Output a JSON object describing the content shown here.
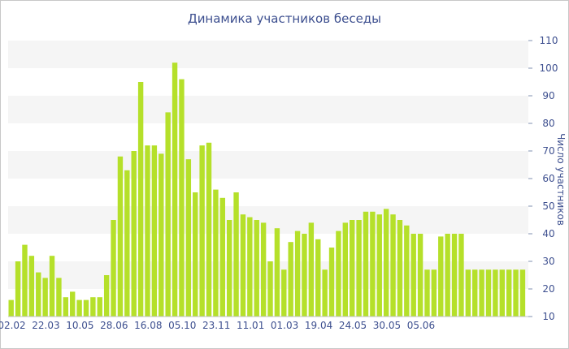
{
  "chart_data": {
    "type": "bar",
    "title": "Динамика участников беседы",
    "xlabel": "",
    "ylabel": "Число участников",
    "ylim": [
      10,
      110
    ],
    "y_ticks": [
      10,
      20,
      30,
      40,
      50,
      60,
      70,
      80,
      90,
      100,
      110
    ],
    "y_axis_side": "right",
    "grid": true,
    "legend": "none",
    "bar_color": "#b5e02a",
    "band_color": "#f5f5f5",
    "values": [
      16,
      30,
      36,
      32,
      26,
      24,
      32,
      24,
      17,
      19,
      16,
      16,
      17,
      17,
      25,
      45,
      68,
      63,
      70,
      95,
      72,
      72,
      69,
      84,
      102,
      96,
      67,
      55,
      72,
      73,
      56,
      53,
      45,
      55,
      47,
      46,
      45,
      44,
      30,
      42,
      27,
      37,
      41,
      40,
      44,
      38,
      27,
      35,
      41,
      44,
      45,
      45,
      48,
      48,
      47,
      49,
      47,
      45,
      43,
      40,
      40,
      27,
      27,
      39,
      40,
      40,
      40,
      27,
      27,
      27,
      27,
      27,
      27,
      27,
      27,
      27
    ],
    "x_tick_labels": [
      {
        "label": "02.02",
        "index": 0
      },
      {
        "label": "22.03",
        "index": 5
      },
      {
        "label": "10.05",
        "index": 10
      },
      {
        "label": "28.06",
        "index": 15
      },
      {
        "label": "16.08",
        "index": 20
      },
      {
        "label": "05.10",
        "index": 25
      },
      {
        "label": "23.11",
        "index": 30
      },
      {
        "label": "11.01",
        "index": 35
      },
      {
        "label": "01.03",
        "index": 40
      },
      {
        "label": "19.04",
        "index": 45
      },
      {
        "label": "24.05",
        "index": 50
      },
      {
        "label": "30.05",
        "index": 55
      },
      {
        "label": "05.06",
        "index": 60
      }
    ]
  }
}
